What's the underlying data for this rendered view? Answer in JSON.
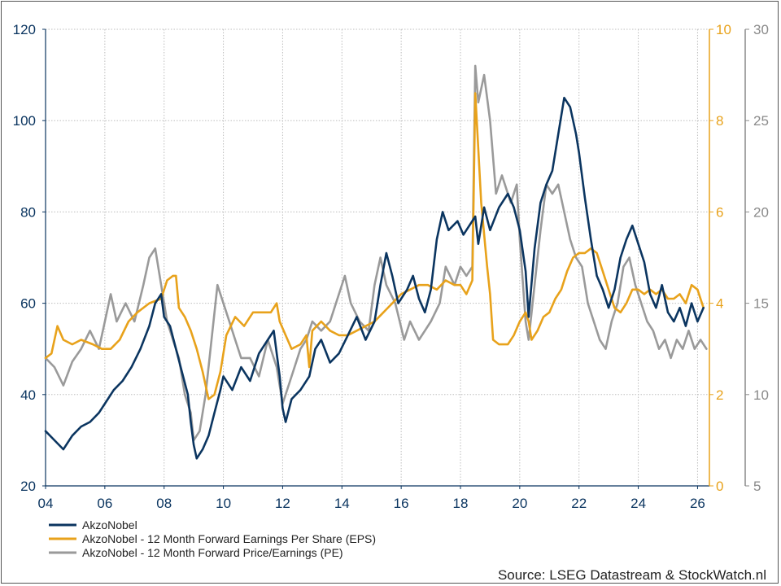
{
  "chart_data": {
    "type": "line",
    "x_ticks": [
      "04",
      "06",
      "08",
      "10",
      "12",
      "14",
      "16",
      "18",
      "20",
      "22",
      "24",
      "26"
    ],
    "x_range": [
      2004,
      2026.4
    ],
    "axes": {
      "left": {
        "ticks": [
          "20",
          "40",
          "60",
          "80",
          "100",
          "120"
        ],
        "range": [
          20,
          120
        ],
        "color": "#0b3560"
      },
      "right1": {
        "ticks": [
          "0",
          "2",
          "4",
          "6",
          "8",
          "10"
        ],
        "range": [
          0,
          10
        ],
        "color": "#e8a21b"
      },
      "right2": {
        "ticks": [
          "5",
          "10",
          "15",
          "20",
          "25",
          "30"
        ],
        "range": [
          5,
          30
        ],
        "color": "#8a8a8a"
      }
    },
    "grid": true,
    "legend_position": "bottom-left",
    "series": [
      {
        "name": "AkzoNobel",
        "axis": "left",
        "color": "#0b3560",
        "points": [
          [
            2004.0,
            32
          ],
          [
            2004.3,
            30
          ],
          [
            2004.6,
            28
          ],
          [
            2004.9,
            31
          ],
          [
            2005.2,
            33
          ],
          [
            2005.5,
            34
          ],
          [
            2005.8,
            36
          ],
          [
            2006.0,
            38
          ],
          [
            2006.3,
            41
          ],
          [
            2006.6,
            43
          ],
          [
            2006.9,
            46
          ],
          [
            2007.2,
            50
          ],
          [
            2007.5,
            55
          ],
          [
            2007.7,
            60
          ],
          [
            2007.9,
            62
          ],
          [
            2008.0,
            57
          ],
          [
            2008.2,
            55
          ],
          [
            2008.4,
            50
          ],
          [
            2008.6,
            45
          ],
          [
            2008.8,
            40
          ],
          [
            2008.9,
            34
          ],
          [
            2009.0,
            29
          ],
          [
            2009.1,
            26
          ],
          [
            2009.3,
            28
          ],
          [
            2009.5,
            31
          ],
          [
            2009.7,
            36
          ],
          [
            2009.9,
            41
          ],
          [
            2010.0,
            44
          ],
          [
            2010.3,
            41
          ],
          [
            2010.6,
            46
          ],
          [
            2010.9,
            43
          ],
          [
            2011.2,
            49
          ],
          [
            2011.5,
            52
          ],
          [
            2011.7,
            54
          ],
          [
            2011.9,
            44
          ],
          [
            2012.0,
            37
          ],
          [
            2012.1,
            34
          ],
          [
            2012.3,
            39
          ],
          [
            2012.6,
            41
          ],
          [
            2012.9,
            44
          ],
          [
            2013.1,
            50
          ],
          [
            2013.3,
            52
          ],
          [
            2013.6,
            47
          ],
          [
            2013.9,
            49
          ],
          [
            2014.2,
            53
          ],
          [
            2014.5,
            57
          ],
          [
            2014.8,
            52
          ],
          [
            2015.1,
            56
          ],
          [
            2015.3,
            64
          ],
          [
            2015.5,
            71
          ],
          [
            2015.7,
            66
          ],
          [
            2015.9,
            60
          ],
          [
            2016.2,
            63
          ],
          [
            2016.4,
            66
          ],
          [
            2016.6,
            61
          ],
          [
            2016.8,
            58
          ],
          [
            2017.0,
            63
          ],
          [
            2017.2,
            74
          ],
          [
            2017.4,
            80
          ],
          [
            2017.6,
            76
          ],
          [
            2017.9,
            78
          ],
          [
            2018.1,
            75
          ],
          [
            2018.3,
            77
          ],
          [
            2018.5,
            79
          ],
          [
            2018.6,
            73
          ],
          [
            2018.8,
            81
          ],
          [
            2019.0,
            76
          ],
          [
            2019.3,
            81
          ],
          [
            2019.6,
            84
          ],
          [
            2019.8,
            81
          ],
          [
            2020.0,
            76
          ],
          [
            2020.2,
            67
          ],
          [
            2020.3,
            57
          ],
          [
            2020.5,
            72
          ],
          [
            2020.7,
            82
          ],
          [
            2020.9,
            86
          ],
          [
            2021.1,
            89
          ],
          [
            2021.3,
            97
          ],
          [
            2021.5,
            105
          ],
          [
            2021.7,
            103
          ],
          [
            2021.9,
            97
          ],
          [
            2022.0,
            93
          ],
          [
            2022.2,
            83
          ],
          [
            2022.4,
            74
          ],
          [
            2022.6,
            66
          ],
          [
            2022.8,
            63
          ],
          [
            2023.0,
            59
          ],
          [
            2023.2,
            63
          ],
          [
            2023.4,
            70
          ],
          [
            2023.6,
            74
          ],
          [
            2023.8,
            77
          ],
          [
            2024.0,
            73
          ],
          [
            2024.2,
            69
          ],
          [
            2024.4,
            62
          ],
          [
            2024.6,
            59
          ],
          [
            2024.8,
            64
          ],
          [
            2025.0,
            58
          ],
          [
            2025.2,
            56
          ],
          [
            2025.4,
            59
          ],
          [
            2025.6,
            55
          ],
          [
            2025.8,
            60
          ],
          [
            2026.0,
            56
          ],
          [
            2026.2,
            59
          ]
        ]
      },
      {
        "name": "AkzoNobel - 12 Month Forward Earnings Per Share (EPS)",
        "axis": "right1",
        "color": "#e8a21b",
        "points": [
          [
            2004.0,
            2.8
          ],
          [
            2004.2,
            2.9
          ],
          [
            2004.4,
            3.5
          ],
          [
            2004.6,
            3.2
          ],
          [
            2004.9,
            3.1
          ],
          [
            2005.2,
            3.2
          ],
          [
            2005.6,
            3.1
          ],
          [
            2005.9,
            3.0
          ],
          [
            2006.2,
            3.0
          ],
          [
            2006.5,
            3.2
          ],
          [
            2006.8,
            3.6
          ],
          [
            2007.1,
            3.8
          ],
          [
            2007.5,
            4.0
          ],
          [
            2007.9,
            4.1
          ],
          [
            2008.1,
            4.5
          ],
          [
            2008.3,
            4.6
          ],
          [
            2008.4,
            4.6
          ],
          [
            2008.5,
            3.9
          ],
          [
            2008.7,
            3.7
          ],
          [
            2008.9,
            3.4
          ],
          [
            2009.1,
            3.0
          ],
          [
            2009.3,
            2.5
          ],
          [
            2009.5,
            1.9
          ],
          [
            2009.7,
            2.0
          ],
          [
            2009.9,
            2.5
          ],
          [
            2010.1,
            3.3
          ],
          [
            2010.4,
            3.7
          ],
          [
            2010.7,
            3.5
          ],
          [
            2011.0,
            3.8
          ],
          [
            2011.3,
            3.8
          ],
          [
            2011.6,
            3.8
          ],
          [
            2011.8,
            4.0
          ],
          [
            2011.9,
            3.6
          ],
          [
            2012.1,
            3.3
          ],
          [
            2012.3,
            3.0
          ],
          [
            2012.6,
            3.1
          ],
          [
            2012.8,
            3.3
          ],
          [
            2012.9,
            2.6
          ],
          [
            2013.0,
            3.4
          ],
          [
            2013.3,
            3.6
          ],
          [
            2013.6,
            3.4
          ],
          [
            2013.9,
            3.3
          ],
          [
            2014.2,
            3.3
          ],
          [
            2014.5,
            3.4
          ],
          [
            2014.8,
            3.5
          ],
          [
            2015.1,
            3.6
          ],
          [
            2015.4,
            3.8
          ],
          [
            2015.7,
            4.0
          ],
          [
            2016.0,
            4.2
          ],
          [
            2016.3,
            4.3
          ],
          [
            2016.6,
            4.4
          ],
          [
            2016.9,
            4.4
          ],
          [
            2017.2,
            4.3
          ],
          [
            2017.5,
            4.5
          ],
          [
            2017.8,
            4.4
          ],
          [
            2018.0,
            4.4
          ],
          [
            2018.2,
            4.2
          ],
          [
            2018.4,
            4.5
          ],
          [
            2018.5,
            8.6
          ],
          [
            2018.7,
            6.2
          ],
          [
            2018.9,
            4.8
          ],
          [
            2019.0,
            4.2
          ],
          [
            2019.1,
            3.2
          ],
          [
            2019.3,
            3.1
          ],
          [
            2019.6,
            3.1
          ],
          [
            2019.8,
            3.3
          ],
          [
            2020.0,
            3.6
          ],
          [
            2020.2,
            3.8
          ],
          [
            2020.3,
            3.6
          ],
          [
            2020.4,
            3.2
          ],
          [
            2020.6,
            3.4
          ],
          [
            2020.8,
            3.7
          ],
          [
            2021.0,
            3.8
          ],
          [
            2021.2,
            4.1
          ],
          [
            2021.4,
            4.3
          ],
          [
            2021.6,
            4.7
          ],
          [
            2021.8,
            5.0
          ],
          [
            2022.0,
            5.1
          ],
          [
            2022.2,
            5.1
          ],
          [
            2022.4,
            5.2
          ],
          [
            2022.6,
            5.1
          ],
          [
            2022.8,
            4.7
          ],
          [
            2023.0,
            4.3
          ],
          [
            2023.2,
            3.9
          ],
          [
            2023.4,
            3.8
          ],
          [
            2023.6,
            4.0
          ],
          [
            2023.8,
            4.3
          ],
          [
            2024.0,
            4.3
          ],
          [
            2024.2,
            4.2
          ],
          [
            2024.4,
            4.3
          ],
          [
            2024.6,
            4.2
          ],
          [
            2024.8,
            4.3
          ],
          [
            2025.0,
            4.1
          ],
          [
            2025.2,
            4.1
          ],
          [
            2025.4,
            4.2
          ],
          [
            2025.6,
            4.0
          ],
          [
            2025.8,
            4.4
          ],
          [
            2026.0,
            4.3
          ],
          [
            2026.2,
            3.9
          ]
        ]
      },
      {
        "name": "AkzoNobel - 12 Month Forward Price/Earnings (PE)",
        "axis": "right2",
        "color": "#9a9a9a",
        "points": [
          [
            2004.0,
            12
          ],
          [
            2004.3,
            11.5
          ],
          [
            2004.6,
            10.5
          ],
          [
            2004.9,
            11.8
          ],
          [
            2005.2,
            12.5
          ],
          [
            2005.5,
            13.5
          ],
          [
            2005.8,
            12.5
          ],
          [
            2006.0,
            14
          ],
          [
            2006.2,
            15.5
          ],
          [
            2006.4,
            14
          ],
          [
            2006.7,
            15
          ],
          [
            2007.0,
            14
          ],
          [
            2007.3,
            16
          ],
          [
            2007.5,
            17.5
          ],
          [
            2007.7,
            18
          ],
          [
            2007.9,
            16
          ],
          [
            2008.1,
            14
          ],
          [
            2008.3,
            13
          ],
          [
            2008.5,
            12
          ],
          [
            2008.7,
            10
          ],
          [
            2008.9,
            9
          ],
          [
            2009.0,
            7.5
          ],
          [
            2009.2,
            8
          ],
          [
            2009.4,
            10
          ],
          [
            2009.6,
            13
          ],
          [
            2009.8,
            16
          ],
          [
            2010.0,
            15
          ],
          [
            2010.2,
            14
          ],
          [
            2010.4,
            13
          ],
          [
            2010.6,
            12
          ],
          [
            2010.9,
            12
          ],
          [
            2011.2,
            11
          ],
          [
            2011.5,
            13
          ],
          [
            2011.8,
            11.5
          ],
          [
            2012.0,
            9.5
          ],
          [
            2012.3,
            11
          ],
          [
            2012.6,
            12.5
          ],
          [
            2012.8,
            13
          ],
          [
            2013.0,
            14
          ],
          [
            2013.3,
            13.5
          ],
          [
            2013.6,
            14
          ],
          [
            2013.9,
            15.5
          ],
          [
            2014.1,
            16.5
          ],
          [
            2014.3,
            15
          ],
          [
            2014.6,
            14
          ],
          [
            2014.9,
            13.5
          ],
          [
            2015.1,
            16
          ],
          [
            2015.3,
            17.5
          ],
          [
            2015.5,
            16
          ],
          [
            2015.8,
            15
          ],
          [
            2016.1,
            13
          ],
          [
            2016.3,
            14
          ],
          [
            2016.6,
            13
          ],
          [
            2016.8,
            13.5
          ],
          [
            2017.0,
            14
          ],
          [
            2017.3,
            15
          ],
          [
            2017.5,
            17
          ],
          [
            2017.8,
            16
          ],
          [
            2018.0,
            17
          ],
          [
            2018.2,
            16.5
          ],
          [
            2018.4,
            17
          ],
          [
            2018.5,
            28
          ],
          [
            2018.6,
            26
          ],
          [
            2018.8,
            27.5
          ],
          [
            2019.0,
            25
          ],
          [
            2019.2,
            21
          ],
          [
            2019.4,
            22
          ],
          [
            2019.7,
            20.5
          ],
          [
            2019.9,
            21.5
          ],
          [
            2020.0,
            18.5
          ],
          [
            2020.2,
            14
          ],
          [
            2020.3,
            13
          ],
          [
            2020.5,
            16
          ],
          [
            2020.7,
            19
          ],
          [
            2020.9,
            21.5
          ],
          [
            2021.1,
            21
          ],
          [
            2021.3,
            21.5
          ],
          [
            2021.5,
            20
          ],
          [
            2021.7,
            18.5
          ],
          [
            2021.9,
            17.5
          ],
          [
            2022.1,
            17
          ],
          [
            2022.3,
            15
          ],
          [
            2022.5,
            14
          ],
          [
            2022.7,
            13
          ],
          [
            2022.9,
            12.5
          ],
          [
            2023.1,
            14
          ],
          [
            2023.3,
            15
          ],
          [
            2023.5,
            17
          ],
          [
            2023.7,
            17.5
          ],
          [
            2023.9,
            16
          ],
          [
            2024.1,
            15
          ],
          [
            2024.3,
            14
          ],
          [
            2024.5,
            13.5
          ],
          [
            2024.7,
            12.5
          ],
          [
            2024.9,
            13
          ],
          [
            2025.1,
            12
          ],
          [
            2025.3,
            13
          ],
          [
            2025.5,
            12.5
          ],
          [
            2025.7,
            13.5
          ],
          [
            2025.9,
            12.5
          ],
          [
            2026.1,
            13
          ],
          [
            2026.3,
            12.5
          ]
        ]
      }
    ],
    "source": "Source: LSEG Datastream & StockWatch.nl"
  }
}
